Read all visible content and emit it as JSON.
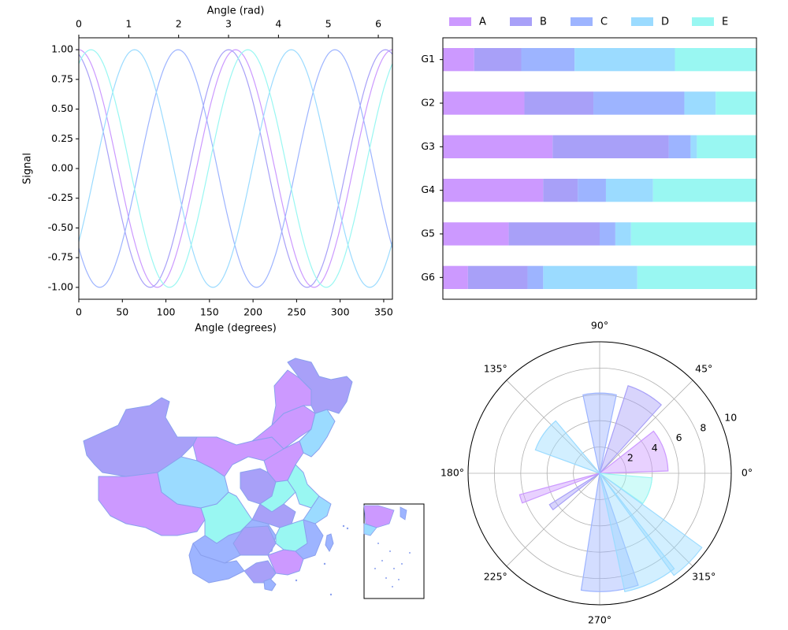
{
  "palette": [
    "#cc99ff",
    "#a8a0f8",
    "#9db4ff",
    "#9bdbff",
    "#99f7f2"
  ],
  "chart_data": [
    {
      "type": "line",
      "xlabel": "Angle (degrees)",
      "x2label": "Angle (rad)",
      "ylabel": "Signal",
      "xlim": [
        0,
        360
      ],
      "ylim": [
        -1.1,
        1.1
      ],
      "x_ticks": [
        0,
        50,
        100,
        150,
        200,
        250,
        300,
        350
      ],
      "x2_ticks": [
        0,
        1,
        2,
        3,
        4,
        5,
        6
      ],
      "y_ticks": [
        "-1.00",
        "-0.75",
        "-0.50",
        "-0.25",
        "0.00",
        "0.25",
        "0.50",
        "0.75",
        "1.00"
      ],
      "series": [
        {
          "period_deg": 180,
          "phase_deg": 0
        },
        {
          "period_deg": 180,
          "phase_deg": 172
        },
        {
          "period_deg": 180,
          "phase_deg": 114
        },
        {
          "period_deg": 180,
          "phase_deg": 64
        },
        {
          "period_deg": 180,
          "phase_deg": 194
        }
      ]
    },
    {
      "type": "bar",
      "orientation": "horizontal",
      "stacked": true,
      "normalized": true,
      "categories": [
        "G1",
        "G2",
        "G3",
        "G4",
        "G5",
        "G6"
      ],
      "legend": [
        "A",
        "B",
        "C",
        "D",
        "E"
      ],
      "legend_position": "top",
      "series": [
        {
          "name": "A",
          "values": [
            0.1,
            0.26,
            0.35,
            0.32,
            0.21,
            0.08
          ]
        },
        {
          "name": "B",
          "values": [
            0.15,
            0.22,
            0.37,
            0.11,
            0.29,
            0.19
          ]
        },
        {
          "name": "C",
          "values": [
            0.17,
            0.29,
            0.07,
            0.09,
            0.05,
            0.05
          ]
        },
        {
          "name": "D",
          "values": [
            0.32,
            0.1,
            0.02,
            0.15,
            0.05,
            0.3
          ]
        },
        {
          "name": "E",
          "values": [
            0.26,
            0.13,
            0.19,
            0.33,
            0.4,
            0.38
          ]
        }
      ]
    },
    {
      "type": "map",
      "inset": true
    },
    {
      "type": "polar-bar",
      "angle_ticks": [
        "0°",
        "45°",
        "90°",
        "135°",
        "180°",
        "225°",
        "270°",
        "315°"
      ],
      "r_ticks": [
        2,
        4,
        6,
        8,
        10
      ],
      "rlim": [
        0,
        10
      ],
      "bars": [
        {
          "angle_deg": 20,
          "width_deg": 36,
          "r": 5.2,
          "color": 0
        },
        {
          "angle_deg": 340,
          "width_deg": 30,
          "r": 4.0,
          "color": 4
        },
        {
          "angle_deg": 60,
          "width_deg": 24,
          "r": 7.0,
          "color": 1
        },
        {
          "angle_deg": 90,
          "width_deg": 24,
          "r": 6.1,
          "color": 2
        },
        {
          "angle_deg": 145,
          "width_deg": 30,
          "r": 5.2,
          "color": 3
        },
        {
          "angle_deg": 198,
          "width_deg": 6,
          "r": 6.3,
          "color": 0
        },
        {
          "angle_deg": 215,
          "width_deg": 6,
          "r": 4.5,
          "color": 1
        },
        {
          "angle_deg": 275,
          "width_deg": 28,
          "r": 9.0,
          "color": 2
        },
        {
          "angle_deg": 295,
          "width_deg": 26,
          "r": 9.2,
          "color": 3
        },
        {
          "angle_deg": 315,
          "width_deg": 18,
          "r": 9.6,
          "color": 3
        }
      ]
    }
  ]
}
